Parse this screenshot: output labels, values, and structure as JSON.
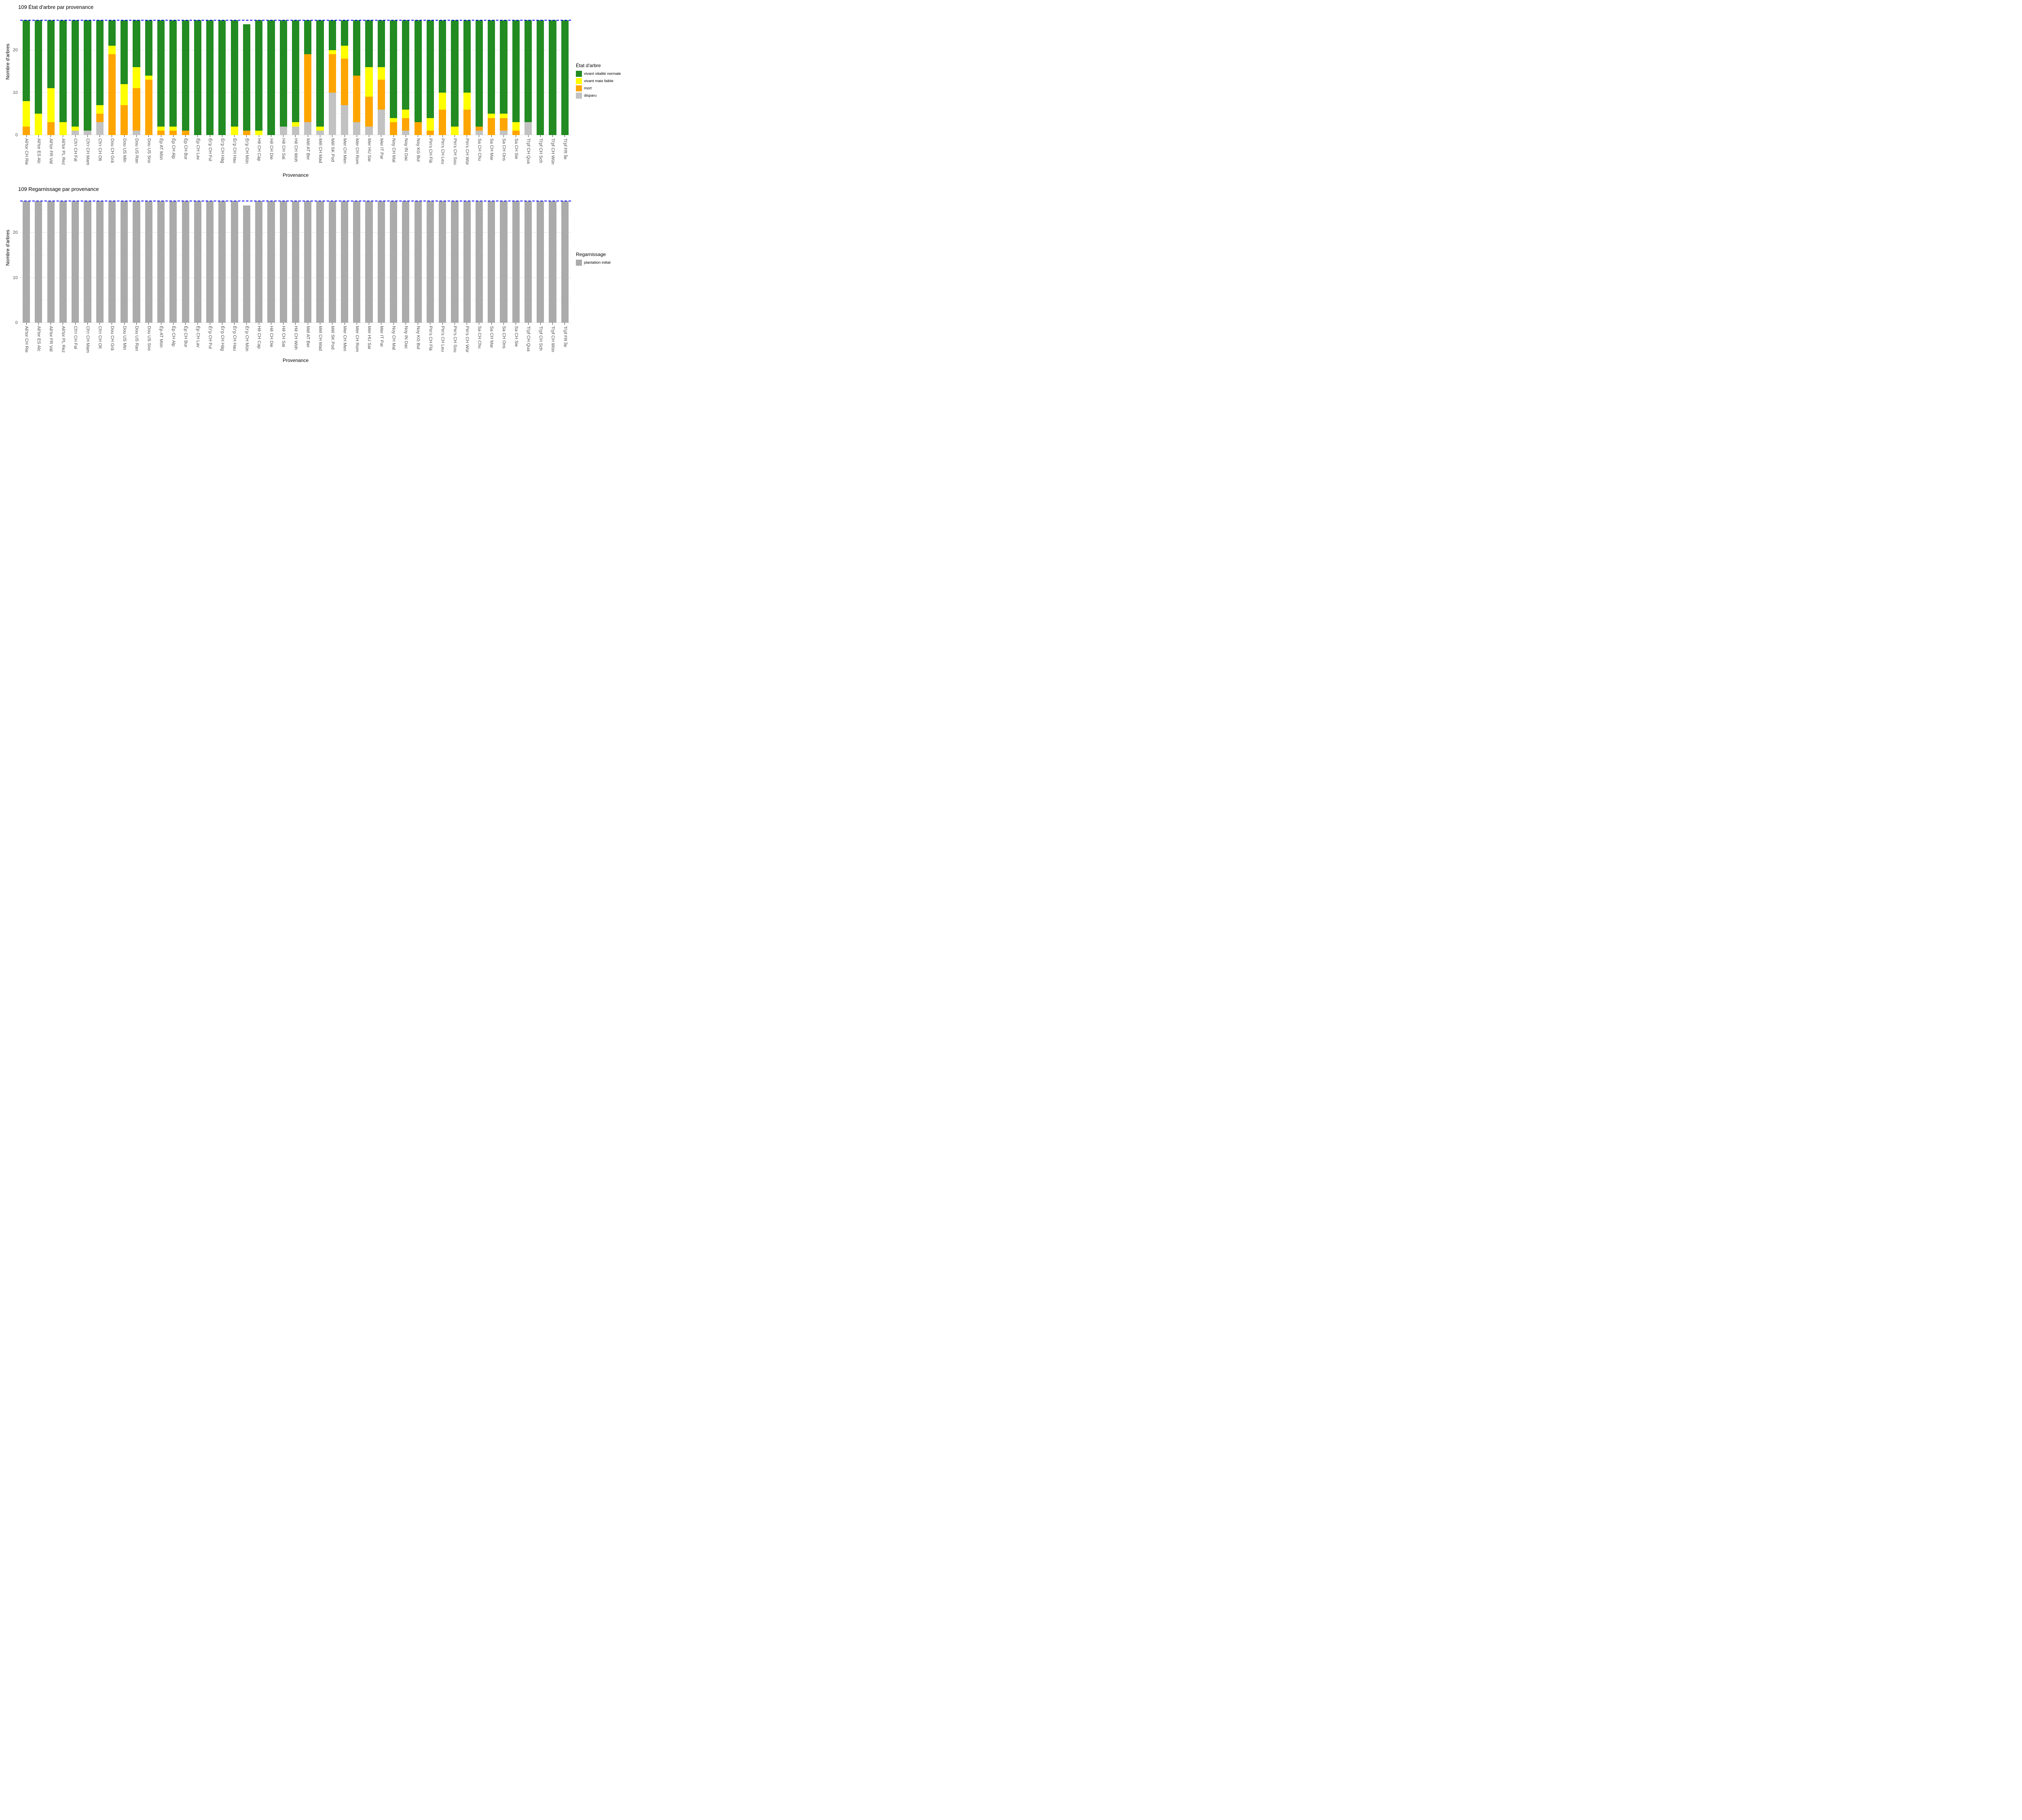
{
  "charts_meta": [
    {
      "title": "109 État d'arbre par provenance",
      "ylabel": "Nombre d'arbres",
      "xlabel": "Provenance",
      "legend_title": "État d'arbre"
    },
    {
      "title": "109 Regarnissage par provenance",
      "ylabel": "Nombre d'arbres",
      "xlabel": "Provenance",
      "legend_title": "Regarnissage"
    }
  ],
  "colors": {
    "vivant_vitalite_normale": "#228B22",
    "vivant_mais_faible": "#FFFF00",
    "mort": "#FFA500",
    "disparu": "#C2C2C2",
    "plantation_initial": "#ABABAB",
    "reference_line": "#0000FF",
    "grid_major": "#E3E3E3",
    "grid_minor": "#F1F1F1",
    "axis_text": "#4D4D4D"
  },
  "chart_data": [
    {
      "type": "bar",
      "stacked": true,
      "title": "109 État d'arbre par provenance",
      "xlabel": "Provenance",
      "ylabel": "Nombre d'arbres",
      "ylim": [
        0,
        28.8
      ],
      "yticks": [
        0,
        10,
        20
      ],
      "grid_minor_at": [
        5,
        15,
        25
      ],
      "grid": true,
      "legend_title": "État d'arbre",
      "legend_position": "right",
      "reference_line": {
        "value": 27,
        "style": "dashed",
        "color": "#0000FF"
      },
      "categories": [
        "Ali'tor CH Rie",
        "Ali'tor ES Alc",
        "Ali'tor FR Val",
        "Ali'tor PL Rez",
        "Ch'r CH Fal",
        "Ch'r CH Mam",
        "Ch'r CH Olt",
        "Dou CH Grä",
        "Dou US Min",
        "Dou US Ran",
        "Dou US Sno",
        "Ép AT Mün",
        "Ép CH Alp",
        "Ép CH Bur",
        "Ép CH Lav",
        "Ér'p CH Ful",
        "Ér'p CH Häg",
        "Ér'p CH Hau",
        "Ér'p CH Mün",
        "Hê CH Cap",
        "Hê CH Die",
        "Hê CH Sai",
        "Hê CH Woh",
        "Mél AT Ber",
        "Mél CH Mad",
        "Mél SK Pod",
        "Mer CH Men",
        "Mer CH Rom",
        "Mer HU Sar",
        "Mer IT Par",
        "Noy CH Mal",
        "Noy IN Dac",
        "Noy KG Bul",
        "Pin's CH Flä",
        "Pin's CH Leu",
        "Pin's CH Sou",
        "Pin's CH Wür",
        "Sa CH Chu",
        "Sa CH Mar",
        "Sa CH Ons",
        "Sa CH Sie",
        "Ti'pf CH Qua",
        "Ti'pf CH Sch",
        "Ti'pf CH Wün",
        "Ti'pf FR Île"
      ],
      "series": [
        {
          "name": "disparu",
          "color": "#C2C2C2",
          "values": [
            0,
            0,
            0,
            0,
            1,
            1,
            3,
            0,
            0,
            1,
            0,
            0,
            0,
            0,
            0,
            0,
            0,
            0,
            0,
            0,
            0,
            2,
            2,
            3,
            1,
            10,
            7,
            3,
            2,
            6,
            0,
            1,
            0,
            0,
            0,
            0,
            0,
            1,
            0,
            1,
            0,
            3,
            0,
            0,
            0
          ]
        },
        {
          "name": "mort",
          "color": "#FFA500",
          "values": [
            2,
            0,
            3,
            0,
            0,
            0,
            2,
            19,
            7,
            10,
            13,
            1,
            1,
            1,
            0,
            0,
            0,
            0,
            1,
            0,
            0,
            0,
            0,
            16,
            0,
            9,
            11,
            11,
            7,
            7,
            3,
            3,
            3,
            1,
            6,
            0,
            6,
            1,
            4,
            3,
            1,
            0,
            0,
            0,
            0
          ]
        },
        {
          "name": "vivant mais faible",
          "color": "#FFFF00",
          "values": [
            6,
            5,
            8,
            3,
            1,
            0,
            2,
            2,
            5,
            5,
            1,
            1,
            1,
            0,
            0,
            0,
            0,
            2,
            0,
            1,
            0,
            0,
            1,
            0,
            1,
            1,
            3,
            0,
            7,
            3,
            1,
            2,
            0,
            3,
            4,
            2,
            4,
            0,
            1,
            1,
            2,
            0,
            0,
            0,
            0
          ]
        },
        {
          "name": "vivant vitalité normale",
          "color": "#228B22",
          "values": [
            19,
            22,
            16,
            24,
            25,
            26,
            20,
            6,
            15,
            11,
            13,
            25,
            25,
            26,
            27,
            27,
            27,
            25,
            25,
            26,
            27,
            25,
            24,
            8,
            25,
            7,
            6,
            13,
            11,
            11,
            23,
            21,
            24,
            23,
            17,
            25,
            17,
            25,
            22,
            22,
            24,
            24,
            27,
            27,
            27
          ]
        }
      ],
      "legend_order_top_to_bottom": [
        "vivant vitalité normale",
        "vivant mais faible",
        "mort",
        "disparu"
      ]
    },
    {
      "type": "bar",
      "stacked": true,
      "title": "109 Regarnissage par provenance",
      "xlabel": "Provenance",
      "ylabel": "Nombre d'arbres",
      "ylim": [
        0,
        28.8
      ],
      "yticks": [
        0,
        10,
        20
      ],
      "grid_minor_at": [
        5,
        15,
        25
      ],
      "grid": true,
      "legend_title": "Regarnissage",
      "legend_position": "right",
      "reference_line": {
        "value": 27,
        "style": "dashed",
        "color": "#0000FF"
      },
      "categories": [
        "Ali'tor CH Rie",
        "Ali'tor ES Alc",
        "Ali'tor FR Val",
        "Ali'tor PL Rez",
        "Ch'r CH Fal",
        "Ch'r CH Mam",
        "Ch'r CH Olt",
        "Dou CH Grä",
        "Dou US Min",
        "Dou US Ran",
        "Dou US Sno",
        "Ép AT Mün",
        "Ép CH Alp",
        "Ép CH Bur",
        "Ép CH Lav",
        "Ér'p CH Ful",
        "Ér'p CH Häg",
        "Ér'p CH Hau",
        "Ér'p CH Mün",
        "Hê CH Cap",
        "Hê CH Die",
        "Hê CH Sai",
        "Hê CH Woh",
        "Mél AT Ber",
        "Mél CH Mad",
        "Mél SK Pod",
        "Mer CH Men",
        "Mer CH Rom",
        "Mer HU Sar",
        "Mer IT Par",
        "Noy CH Mal",
        "Noy IN Dac",
        "Noy KG Bul",
        "Pin's CH Flä",
        "Pin's CH Leu",
        "Pin's CH Sou",
        "Pin's CH Wür",
        "Sa CH Chu",
        "Sa CH Mar",
        "Sa CH Ons",
        "Sa CH Sie",
        "Ti'pf CH Qua",
        "Ti'pf CH Sch",
        "Ti'pf CH Wün",
        "Ti'pf FR Île"
      ],
      "series": [
        {
          "name": "plantation initial",
          "color": "#ABABAB",
          "values": [
            27,
            27,
            27,
            27,
            27,
            27,
            27,
            27,
            27,
            27,
            27,
            27,
            27,
            27,
            27,
            27,
            27,
            27,
            26,
            27,
            27,
            27,
            27,
            27,
            27,
            27,
            27,
            27,
            27,
            27,
            27,
            27,
            27,
            27,
            27,
            27,
            27,
            27,
            27,
            27,
            27,
            27,
            27,
            27,
            27
          ]
        }
      ],
      "legend_order_top_to_bottom": [
        "plantation initial"
      ]
    }
  ]
}
